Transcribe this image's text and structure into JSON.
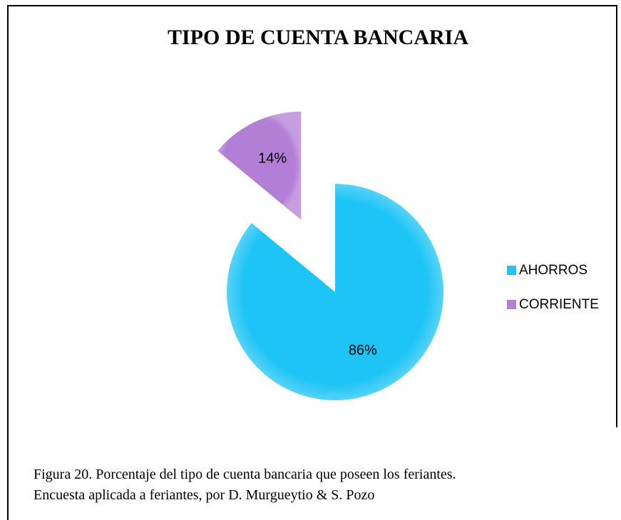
{
  "chart_data": {
    "type": "pie",
    "title": "TIPO DE CUENTA BANCARIA",
    "categories": [
      "AHORROS",
      "CORRIENTE"
    ],
    "values": [
      86,
      14
    ],
    "value_labels": [
      "86%",
      "14%"
    ],
    "colors": [
      "#1ec4f6",
      "#b27ed6"
    ],
    "legend": "right",
    "caption": [
      "Figura 20. Porcentaje del tipo de cuenta bancaria que poseen los feriantes.",
      "Encuesta aplicada a feriantes, por D. Murgueytio & S. Pozo"
    ]
  }
}
